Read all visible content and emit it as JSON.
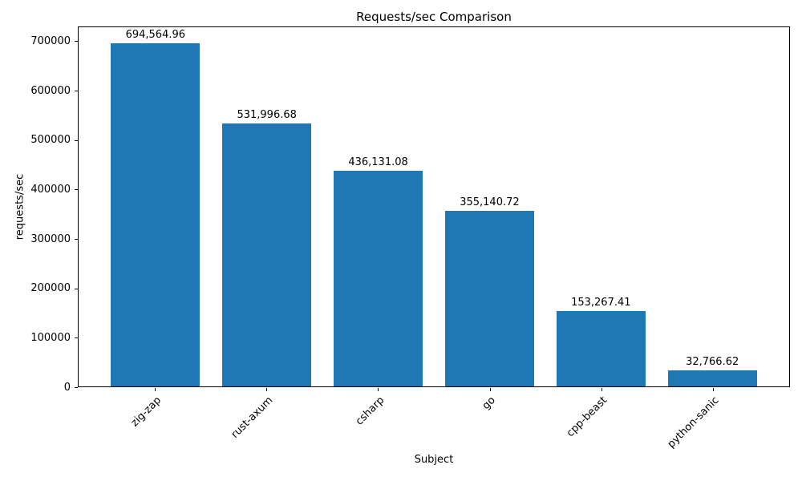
{
  "chart_data": {
    "type": "bar",
    "title": "Requests/sec Comparison",
    "xlabel": "Subject",
    "ylabel": "requests/sec",
    "categories": [
      "zig-zap",
      "rust-axum",
      "csharp",
      "go",
      "cpp-beast",
      "python-sanic"
    ],
    "values": [
      694564.96,
      531996.68,
      436131.08,
      355140.72,
      153267.41,
      32766.62
    ],
    "value_labels": [
      "694,564.96",
      "531,996.68",
      "436,131.08",
      "355,140.72",
      "153,267.41",
      "32,766.62"
    ],
    "ytick_labels": [
      "0",
      "100000",
      "200000",
      "300000",
      "400000",
      "500000",
      "600000",
      "700000"
    ],
    "yticks": [
      0,
      100000,
      200000,
      300000,
      400000,
      500000,
      600000,
      700000
    ],
    "ylim": [
      0,
      730000
    ],
    "xlim": [
      -0.69,
      5.69
    ],
    "bar_width": 0.8,
    "bar_color": "#1f77b4",
    "grid": false,
    "legend": null,
    "x_tick_rotation": 45
  }
}
